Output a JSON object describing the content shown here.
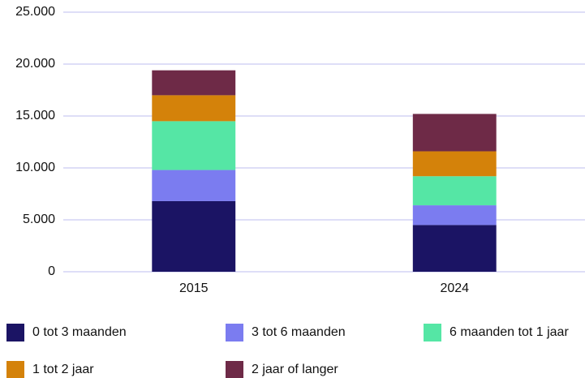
{
  "chart_data": {
    "type": "stacked_bar",
    "categories": [
      "2015",
      "2024"
    ],
    "series": [
      {
        "name": "0 tot 3 maanden",
        "color": "#1b1464",
        "values": [
          6800,
          4500
        ]
      },
      {
        "name": "3 tot 6 maanden",
        "color": "#7b7cf0",
        "values": [
          3000,
          1900
        ]
      },
      {
        "name": "6 maanden tot 1 jaar",
        "color": "#55e6a5",
        "values": [
          4700,
          2800
        ]
      },
      {
        "name": "1 tot 2 jaar",
        "color": "#d4820a",
        "values": [
          2500,
          2400
        ]
      },
      {
        "name": "2 jaar of langer",
        "color": "#6e2a47",
        "values": [
          2400,
          3600
        ]
      }
    ],
    "ylim": [
      0,
      25000
    ],
    "yticks": [
      0,
      {
        "value": 5000,
        "label": "5.000"
      },
      {
        "value": 10000,
        "label": "10.000"
      },
      {
        "value": 15000,
        "label": "15.000"
      },
      {
        "value": 20000,
        "label": "20.000"
      },
      {
        "value": 25000,
        "label": "25.000"
      }
    ],
    "grid": true,
    "legend": "bottom"
  }
}
